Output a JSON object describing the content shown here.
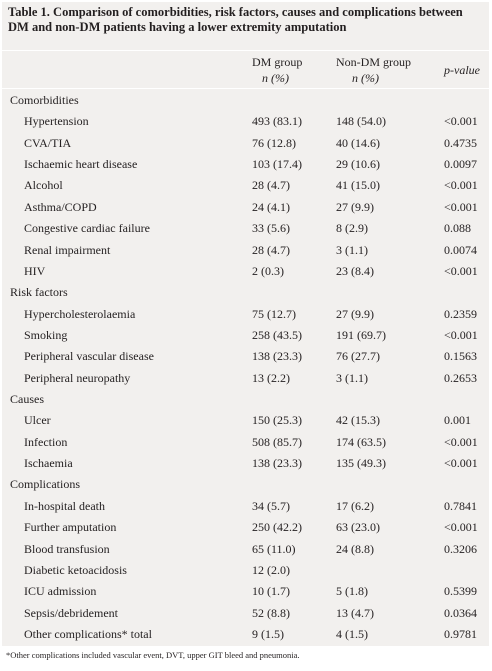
{
  "title": "Table 1. Comparison of comorbidities, risk factors, causes and complications between DM and non-DM patients having a lower extremity amputation",
  "header": {
    "dm": "DM group",
    "dm_unit": "n (%)",
    "nondm": "Non-DM group",
    "nondm_unit": "n (%)",
    "p": "p-value"
  },
  "sections": [
    {
      "title": "Comorbidities",
      "rows": [
        [
          "Hypertension",
          "493 (83.1)",
          "148 (54.0)",
          "<0.001"
        ],
        [
          "CVA/TIA",
          "76 (12.8)",
          "40 (14.6)",
          "0.4735"
        ],
        [
          "Ischaemic heart disease",
          "103 (17.4)",
          "29 (10.6)",
          "0.0097"
        ],
        [
          "Alcohol",
          "28 (4.7)",
          "41 (15.0)",
          "<0.001"
        ],
        [
          "Asthma/COPD",
          "24 (4.1)",
          "27 (9.9)",
          "<0.001"
        ],
        [
          "Congestive cardiac failure",
          "33 (5.6)",
          "8 (2.9)",
          "0.088"
        ],
        [
          "Renal impairment",
          "28 (4.7)",
          "3 (1.1)",
          "0.0074"
        ],
        [
          "HIV",
          "2 (0.3)",
          "23 (8.4)",
          "<0.001"
        ]
      ]
    },
    {
      "title": "Risk factors",
      "rows": [
        [
          "Hypercholesterolaemia",
          "75 (12.7)",
          "27 (9.9)",
          "0.2359"
        ],
        [
          "Smoking",
          "258 (43.5)",
          "191 (69.7)",
          "<0.001"
        ],
        [
          "Peripheral vascular disease",
          "138 (23.3)",
          "76 (27.7)",
          "0.1563"
        ],
        [
          "Peripheral neuropathy",
          "13 (2.2)",
          "3 (1.1)",
          "0.2653"
        ]
      ]
    },
    {
      "title": "Causes",
      "rows": [
        [
          "Ulcer",
          "150 (25.3)",
          "42 (15.3)",
          "0.001"
        ],
        [
          "Infection",
          "508 (85.7)",
          "174 (63.5)",
          "<0.001"
        ],
        [
          "Ischaemia",
          "138 (23.3)",
          "135 (49.3)",
          "<0.001"
        ]
      ]
    },
    {
      "title": "Complications",
      "rows": [
        [
          "In-hospital death",
          "34 (5.7)",
          "17 (6.2)",
          "0.7841"
        ],
        [
          "Further amputation",
          "250 (42.2)",
          "63 (23.0)",
          "<0.001"
        ],
        [
          "Blood transfusion",
          "65 (11.0)",
          "24 (8.8)",
          "0.3206"
        ],
        [
          "Diabetic ketoacidosis",
          "12 (2.0)",
          null,
          null
        ],
        [
          "ICU admission",
          "10 (1.7)",
          "5 (1.8)",
          "0.5399"
        ],
        [
          "Sepsis/debridement",
          "52 (8.8)",
          "13 (4.7)",
          "0.0364"
        ],
        [
          "Other complications* total",
          "9 (1.5)",
          "4 (1.5)",
          "0.9781"
        ]
      ]
    }
  ],
  "footnote": "*Other complications included vascular event, DVT, upper GIT bleed and pneumonia."
}
